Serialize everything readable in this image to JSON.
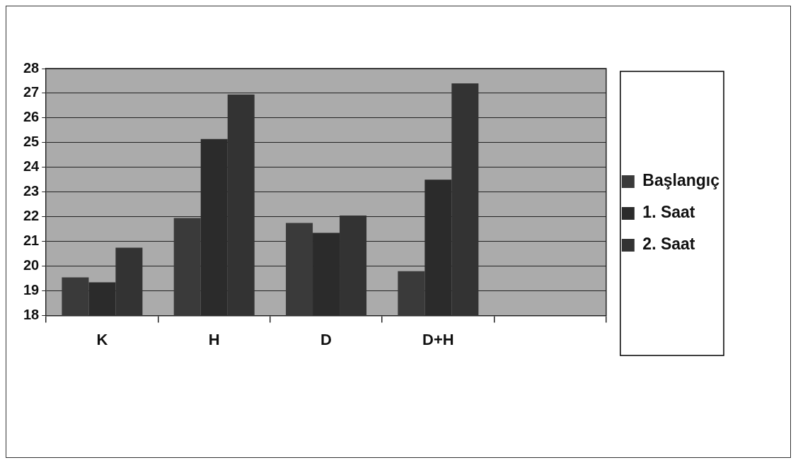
{
  "chart_data": {
    "type": "bar",
    "categories": [
      "K",
      "H",
      "D",
      "D+H",
      null
    ],
    "series": [
      {
        "name": "Başlangıç",
        "color": "#3a3a3a",
        "values": [
          19.55,
          21.95,
          21.75,
          19.8,
          null
        ]
      },
      {
        "name": "1. Saat",
        "color": "#2b2b2b",
        "values": [
          19.35,
          25.15,
          21.35,
          23.5,
          null
        ]
      },
      {
        "name": "2. Saat",
        "color": "#333333",
        "values": [
          20.75,
          26.95,
          22.05,
          27.4,
          null
        ]
      }
    ],
    "ylim": [
      18,
      28
    ],
    "yticks": [
      18,
      19,
      20,
      21,
      22,
      23,
      24,
      25,
      26,
      27,
      28
    ],
    "grid": "y",
    "legend": "right"
  }
}
